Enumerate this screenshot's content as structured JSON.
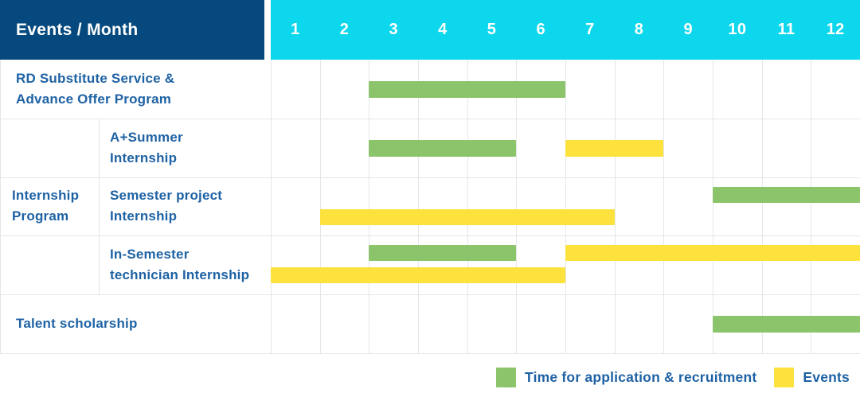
{
  "header": {
    "title": "Events / Month",
    "months": [
      "1",
      "2",
      "3",
      "4",
      "5",
      "6",
      "7",
      "8",
      "9",
      "10",
      "11",
      "12"
    ]
  },
  "colors": {
    "header_bg": "#05497e",
    "months_bg": "#0cd7ec",
    "green": "#8cc46b",
    "yellow": "#fde23e",
    "label_text": "#1e62a4",
    "grid": "#e4e6e8"
  },
  "legend": [
    {
      "color": "green",
      "label": "Time for application & recruitment"
    },
    {
      "color": "yellow",
      "label": "Events"
    }
  ],
  "chart_data": {
    "type": "bar",
    "subtype": "gantt",
    "title": "Events / Month",
    "x_axis": {
      "label": "Month",
      "ticks": [
        "1",
        "2",
        "3",
        "4",
        "5",
        "6",
        "7",
        "8",
        "9",
        "10",
        "11",
        "12"
      ],
      "range": [
        1,
        12
      ]
    },
    "legend_position": "bottom-right",
    "grid": true,
    "group_label": "Internship Program",
    "group_label_lines": [
      "Internship",
      "Program"
    ],
    "rows": [
      {
        "group": "",
        "label": "RD Substitute Service & Advance Offer Program",
        "label_lines": [
          "RD Substitute Service &",
          "Advance Offer Program"
        ],
        "lines": 1,
        "bars": [
          {
            "series": "Time for application & recruitment",
            "color": "green",
            "start_month": 3,
            "end_month": 6,
            "line": 0
          }
        ]
      },
      {
        "group": "Internship Program",
        "label": "A+Summer Internship",
        "label_lines": [
          "A+Summer",
          "Internship"
        ],
        "lines": 1,
        "bars": [
          {
            "series": "Time for application & recruitment",
            "color": "green",
            "start_month": 3,
            "end_month": 5,
            "line": 0
          },
          {
            "series": "Events",
            "color": "yellow",
            "start_month": 7,
            "end_month": 8,
            "line": 0
          }
        ]
      },
      {
        "group": "Internship Program",
        "label": "Semester project Internship",
        "label_lines": [
          "Semester project",
          "Internship"
        ],
        "lines": 2,
        "bars": [
          {
            "series": "Time for application & recruitment",
            "color": "green",
            "start_month": 10,
            "end_month": 12,
            "line": 0
          },
          {
            "series": "Events",
            "color": "yellow",
            "start_month": 2,
            "end_month": 7,
            "line": 1
          }
        ]
      },
      {
        "group": "Internship Program",
        "label": "In-Semester technician Internship",
        "label_lines": [
          "In-Semester",
          "technician Internship"
        ],
        "lines": 2,
        "bars": [
          {
            "series": "Time for application & recruitment",
            "color": "green",
            "start_month": 3,
            "end_month": 5,
            "line": 0
          },
          {
            "series": "Events",
            "color": "yellow",
            "start_month": 7,
            "end_month": 12,
            "line": 0
          },
          {
            "series": "Events",
            "color": "yellow",
            "start_month": 1,
            "end_month": 6,
            "line": 1
          }
        ]
      },
      {
        "group": "",
        "label": "Talent scholarship",
        "label_lines": [
          "Talent scholarship"
        ],
        "lines": 1,
        "bars": [
          {
            "series": "Time for application & recruitment",
            "color": "green",
            "start_month": 10,
            "end_month": 12,
            "line": 0
          }
        ]
      }
    ]
  }
}
